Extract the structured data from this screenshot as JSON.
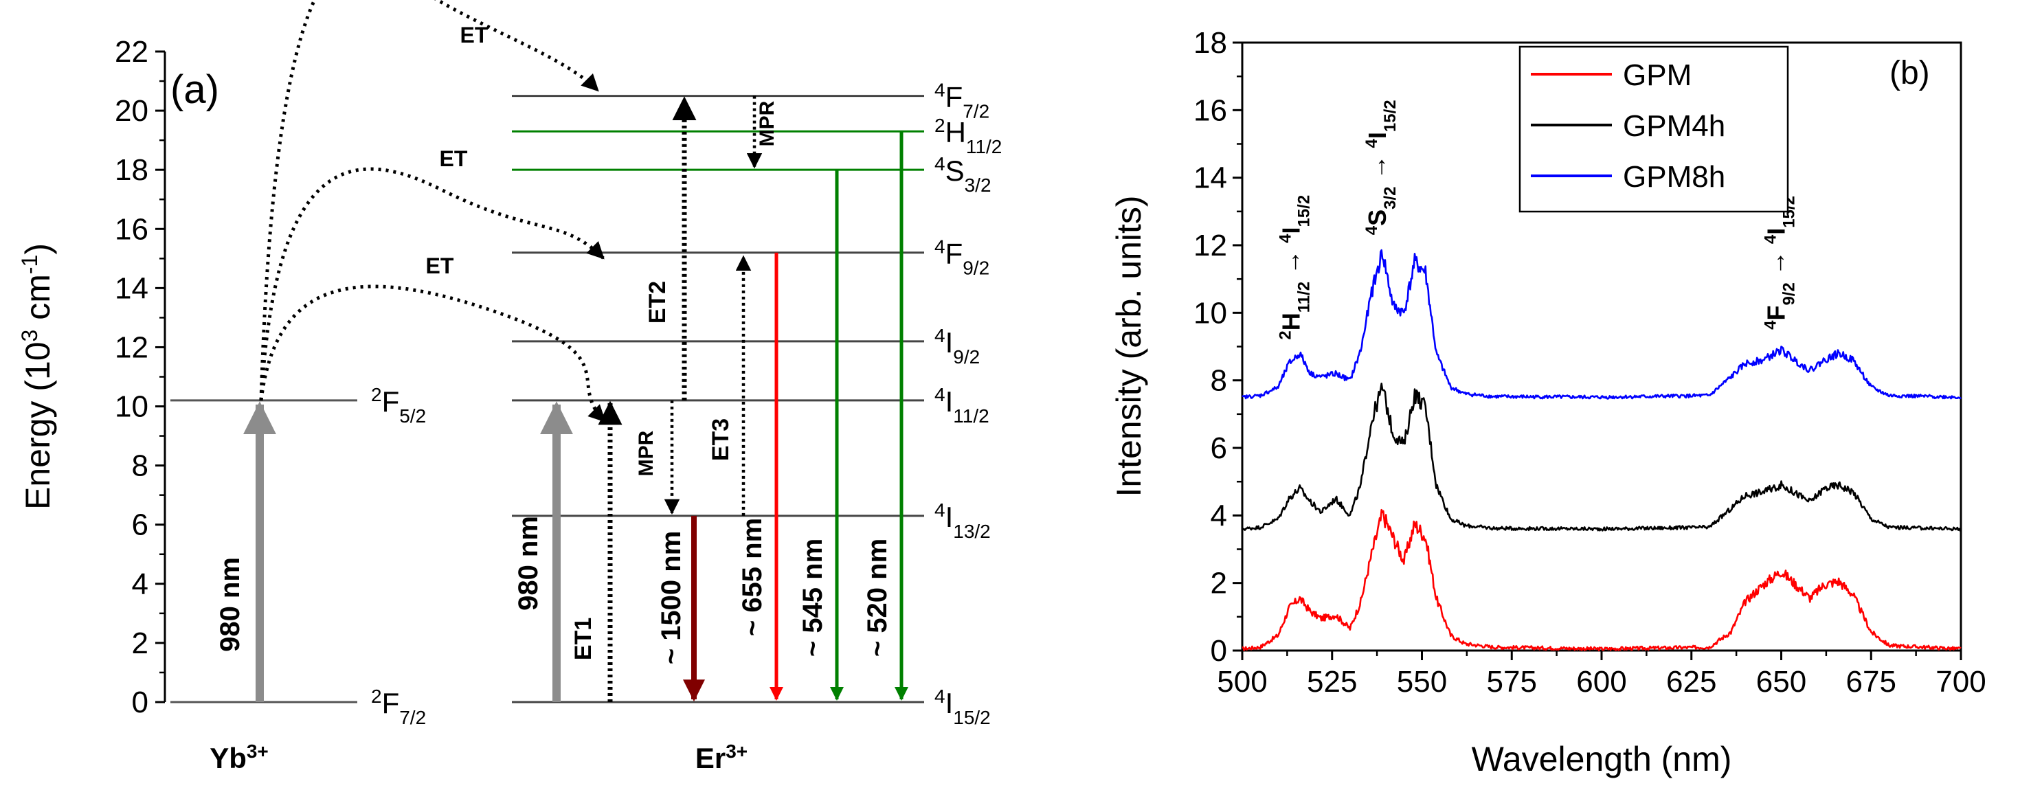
{
  "chart_data": [
    {
      "type": "diagram",
      "panel_label": "(a)",
      "ylabel_prefix": "Energy (10",
      "ylabel_sup": "3",
      "ylabel_unit": " cm",
      "ylabel_sup2": "-1",
      "ylabel_suffix": ")",
      "ylim": [
        0,
        22
      ],
      "yticks": [
        "0",
        "2",
        "4",
        "6",
        "8",
        "10",
        "12",
        "14",
        "16",
        "18",
        "20",
        "22"
      ],
      "ions": {
        "yb": "Yb",
        "yb_charge": "3+",
        "er": "Er",
        "er_charge": "3+"
      },
      "yb_levels": [
        {
          "energy": 0,
          "main": "F",
          "sup": "2",
          "sub": "7/2"
        },
        {
          "energy": 10.2,
          "main": "F",
          "sup": "2",
          "sub": "5/2"
        }
      ],
      "er_levels": [
        {
          "energy": 0,
          "main": "I",
          "sup": "4",
          "sub": "15/2",
          "color": "#000000"
        },
        {
          "energy": 6.3,
          "main": "I",
          "sup": "4",
          "sub": "13/2",
          "color": "#000000"
        },
        {
          "energy": 10.2,
          "main": "I",
          "sup": "4",
          "sub": "11/2",
          "color": "#000000"
        },
        {
          "energy": 12.2,
          "main": "I",
          "sup": "4",
          "sub": "9/2",
          "color": "#000000"
        },
        {
          "energy": 15.2,
          "main": "F",
          "sup": "4",
          "sub": "9/2",
          "color": "#000000"
        },
        {
          "energy": 18.0,
          "main": "S",
          "sup": "4",
          "sub": "3/2",
          "color": "#008000"
        },
        {
          "energy": 19.3,
          "main": "H",
          "sup": "2",
          "sub": "11/2",
          "color": "#008000"
        },
        {
          "energy": 20.5,
          "main": "F",
          "sup": "4",
          "sub": "7/2",
          "color": "#000000"
        }
      ],
      "labels": {
        "pump": "980 nm",
        "et": "ET",
        "et1": "ET1",
        "et2": "ET2",
        "et3": "ET3",
        "mpr": "MPR",
        "em1500": "~ 1500 nm",
        "em655": "~ 655 nm",
        "em545": "~ 545 nm",
        "em520": "~ 520 nm"
      },
      "emission_colors": {
        "em1500": "#800000",
        "em655": "#ff0000",
        "em545": "#008000",
        "em520": "#008000"
      }
    },
    {
      "type": "line",
      "panel_label": "(b)",
      "xlabel": "Wavelength (nm)",
      "ylabel": "Intensity (arb. units)",
      "xlim": [
        500,
        700
      ],
      "ylim": [
        0,
        18
      ],
      "xticks": [
        "500",
        "525",
        "550",
        "575",
        "600",
        "625",
        "650",
        "675",
        "700"
      ],
      "yticks": [
        "0",
        "2",
        "4",
        "6",
        "8",
        "10",
        "12",
        "14",
        "16",
        "18"
      ],
      "legend_position": "top-center",
      "series": [
        {
          "name": "GPM",
          "color": "#ff0000",
          "offset": 0.05,
          "x": [
            500,
            505,
            510,
            513,
            516,
            519,
            522,
            526,
            530,
            533,
            536,
            539,
            542,
            545,
            548,
            551,
            554,
            558,
            562,
            570,
            600,
            630,
            636,
            640,
            645,
            650,
            655,
            658,
            662,
            666,
            670,
            675,
            680,
            700
          ],
          "y": [
            0,
            0.05,
            0.4,
            1.2,
            1.5,
            1.1,
            0.9,
            1.0,
            0.6,
            1.4,
            2.8,
            4.0,
            3.3,
            2.6,
            3.7,
            3.3,
            1.5,
            0.4,
            0.15,
            0.05,
            0,
            0.05,
            0.5,
            1.4,
            1.9,
            2.3,
            1.8,
            1.5,
            1.9,
            2.0,
            1.6,
            0.5,
            0.1,
            0
          ]
        },
        {
          "name": "GPM4h",
          "color": "#000000",
          "offset": 3.6,
          "x": [
            500,
            505,
            510,
            513,
            516,
            519,
            522,
            526,
            530,
            533,
            536,
            539,
            542,
            545,
            548,
            551,
            554,
            558,
            562,
            570,
            600,
            630,
            636,
            640,
            645,
            650,
            655,
            658,
            662,
            666,
            670,
            675,
            680,
            700
          ],
          "y": [
            0,
            0.05,
            0.3,
            0.9,
            1.2,
            0.8,
            0.5,
            0.9,
            0.4,
            1.3,
            3.2,
            4.2,
            2.8,
            2.5,
            4.0,
            3.6,
            1.3,
            0.3,
            0.1,
            0.02,
            0,
            0.05,
            0.6,
            1.0,
            1.1,
            1.3,
            1.0,
            0.8,
            1.2,
            1.3,
            1.1,
            0.3,
            0.05,
            0
          ]
        },
        {
          "name": "GPM8h",
          "color": "#0000ff",
          "offset": 7.5,
          "x": [
            500,
            505,
            510,
            513,
            516,
            519,
            522,
            526,
            530,
            533,
            536,
            539,
            542,
            545,
            548,
            551,
            554,
            558,
            562,
            570,
            600,
            630,
            636,
            640,
            645,
            650,
            655,
            658,
            662,
            666,
            670,
            675,
            680,
            700
          ],
          "y": [
            0,
            0.05,
            0.3,
            1.0,
            1.3,
            0.7,
            0.6,
            0.7,
            0.5,
            1.4,
            3.1,
            4.3,
            2.7,
            2.5,
            4.0,
            3.7,
            1.3,
            0.3,
            0.1,
            0.02,
            0,
            0.05,
            0.6,
            1.0,
            1.1,
            1.4,
            1.0,
            0.8,
            1.1,
            1.3,
            1.1,
            0.3,
            0.05,
            0
          ]
        }
      ],
      "annotations": [
        {
          "pre_sup": "2",
          "main": "H",
          "sub": "11/2",
          "arrow": " → ",
          "post_sup": "4",
          "post_main": "I",
          "post_sub": "15/2",
          "x": 516,
          "y": 9.2
        },
        {
          "pre_sup": "4",
          "main": "S",
          "sub": "3/2",
          "arrow": " → ",
          "post_sup": "4",
          "post_main": "I",
          "post_sub": "15/2",
          "x": 540,
          "y": 12.3
        },
        {
          "pre_sup": "4",
          "main": "F",
          "sub": "9/2",
          "arrow": " → ",
          "post_sup": "4",
          "post_main": "I",
          "post_sub": "15/2",
          "x": 651,
          "y": 9.5
        }
      ]
    }
  ]
}
